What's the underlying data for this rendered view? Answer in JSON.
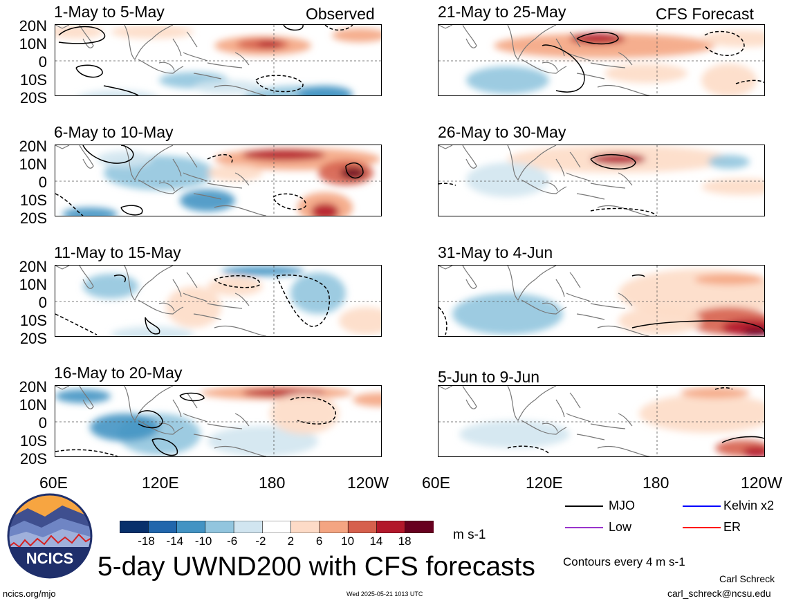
{
  "units": "m s-1",
  "main_title": "5-day UWND200 with CFS forecasts",
  "site": "ncics.org/mjo",
  "timestamp": "Wed 2025-05-21 1013 UTC",
  "author": "Carl Schreck",
  "email": "carl_schreck@ncsu.edu",
  "contour_note": "Contours every 4 m s-1",
  "logo_text": "NCICS",
  "colorbar": {
    "ticks": [
      "-18",
      "-14",
      "-10",
      "-6",
      "-2",
      "2",
      "6",
      "10",
      "14",
      "18"
    ],
    "colors": [
      "#08306b",
      "#2166ac",
      "#4393c3",
      "#92c5de",
      "#d1e5f0",
      "#ffffff",
      "#fddbc7",
      "#f4a582",
      "#d6604d",
      "#b2182b",
      "#67001f"
    ]
  },
  "legend": [
    {
      "label": "MJO",
      "color": "#000000"
    },
    {
      "label": "Kelvin x2",
      "color": "#0000ff"
    },
    {
      "label": "Low",
      "color": "#9933cc"
    },
    {
      "label": "ER",
      "color": "#ff0000"
    }
  ],
  "chart_data": {
    "type": "heatmap",
    "variable": "UWND200",
    "x_ticks": [
      "60E",
      "120E",
      "180",
      "120W"
    ],
    "y_ticks": [
      "20N",
      "10N",
      "0",
      "10S",
      "20S"
    ],
    "panel_groups": {
      "observed": "Observed",
      "forecast": "CFS Forecast"
    },
    "panels": [
      {
        "title": "1-May to 5-May",
        "group": "observed"
      },
      {
        "title": "6-May to 10-May",
        "group": "observed"
      },
      {
        "title": "11-May to 15-May",
        "group": "observed"
      },
      {
        "title": "16-May to 20-May",
        "group": "observed"
      },
      {
        "title": "21-May to 25-May",
        "group": "forecast"
      },
      {
        "title": "26-May to 30-May",
        "group": "forecast"
      },
      {
        "title": "31-May to 4-Jun",
        "group": "forecast"
      },
      {
        "title": "5-Jun to 9-Jun",
        "group": "forecast"
      }
    ]
  }
}
